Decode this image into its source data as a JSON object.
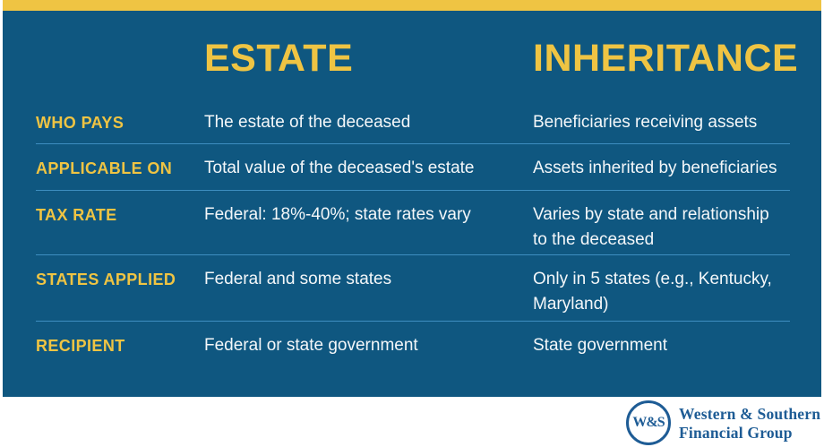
{
  "colors": {
    "accent_yellow": "#EFC443",
    "panel_blue": "#0F5780",
    "divider_blue": "#3E8EC0",
    "text_white": "#F4F7F9",
    "logo_blue": "#1E5C95",
    "page_background": "#FFFFFF"
  },
  "chart_data": {
    "type": "table",
    "columns": [
      "",
      "ESTATE",
      "INHERITANCE"
    ],
    "rows": [
      {
        "label": "WHO PAYS",
        "estate": "The estate of the deceased",
        "inheritance": "Beneficiaries receiving assets"
      },
      {
        "label": "APPLICABLE ON",
        "estate": "Total value of the deceased's estate",
        "inheritance": "Assets inherited by beneficiaries"
      },
      {
        "label": "TAX RATE",
        "estate": "Federal: 18%-40%; state rates vary",
        "inheritance": "Varies by state and relationship to the deceased"
      },
      {
        "label": "STATES APPLIED",
        "estate": "Federal and some states",
        "inheritance": "Only in 5 states (e.g., Kentucky, Maryland)"
      },
      {
        "label": "RECIPIENT",
        "estate": "Federal or state government",
        "inheritance": "State government"
      }
    ],
    "title": "",
    "legend_position": "none",
    "grid": "row-dividers"
  },
  "footer": {
    "monogram": "W&S",
    "line1": "Western & Southern",
    "line2": "Financial Group"
  }
}
